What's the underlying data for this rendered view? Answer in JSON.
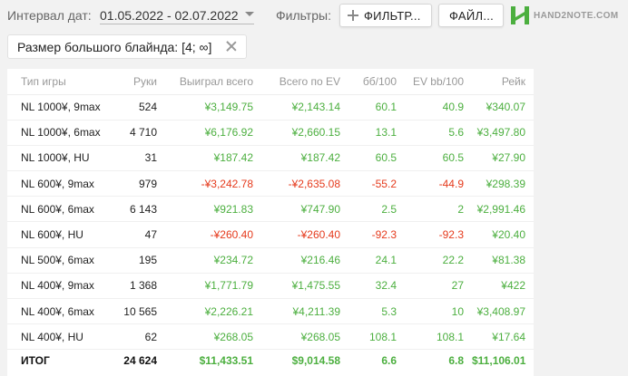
{
  "header": {
    "interval_label": "Интервал дат:",
    "interval_value": "01.05.2022 - 02.07.2022",
    "filters_label": "Фильтры:",
    "filter_button": "ФИЛЬТР...",
    "files_button": "ФАЙЛ...",
    "logo_text": "HAND2NOTE.COM",
    "brand_color": "#4caf3f"
  },
  "chip": {
    "label": "Размер большого блайнда: [4; ∞]"
  },
  "colors": {
    "positive": "#4caf3f",
    "negative": "#e53a1c"
  },
  "table": {
    "columns": [
      "Тип игры",
      "Руки",
      "Выиграл всего",
      "Всего по EV",
      "бб/100",
      "EV bb/100",
      "Рейк"
    ],
    "rows": [
      {
        "game": "NL 1000¥, 9max",
        "hands": "524",
        "won": "¥3,149.75",
        "ev": "¥2,143.14",
        "bb100": "60.1",
        "evbb100": "40.9",
        "rake": "¥340.07",
        "won_sign": "pos",
        "ev_sign": "pos",
        "bb_sign": "pos",
        "evbb_sign": "pos"
      },
      {
        "game": "NL 1000¥, 6max",
        "hands": "4 710",
        "won": "¥6,176.92",
        "ev": "¥2,660.15",
        "bb100": "13.1",
        "evbb100": "5.6",
        "rake": "¥3,497.80",
        "won_sign": "pos",
        "ev_sign": "pos",
        "bb_sign": "pos",
        "evbb_sign": "pos"
      },
      {
        "game": "NL 1000¥, HU",
        "hands": "31",
        "won": "¥187.42",
        "ev": "¥187.42",
        "bb100": "60.5",
        "evbb100": "60.5",
        "rake": "¥27.90",
        "won_sign": "pos",
        "ev_sign": "pos",
        "bb_sign": "pos",
        "evbb_sign": "pos"
      },
      {
        "game": "NL 600¥, 9max",
        "hands": "979",
        "won": "-¥3,242.78",
        "ev": "-¥2,635.08",
        "bb100": "-55.2",
        "evbb100": "-44.9",
        "rake": "¥298.39",
        "won_sign": "neg",
        "ev_sign": "neg",
        "bb_sign": "neg",
        "evbb_sign": "neg"
      },
      {
        "game": "NL 600¥, 6max",
        "hands": "6 143",
        "won": "¥921.83",
        "ev": "¥747.90",
        "bb100": "2.5",
        "evbb100": "2",
        "rake": "¥2,991.46",
        "won_sign": "pos",
        "ev_sign": "pos",
        "bb_sign": "pos",
        "evbb_sign": "pos"
      },
      {
        "game": "NL 600¥, HU",
        "hands": "47",
        "won": "-¥260.40",
        "ev": "-¥260.40",
        "bb100": "-92.3",
        "evbb100": "-92.3",
        "rake": "¥20.40",
        "won_sign": "neg",
        "ev_sign": "neg",
        "bb_sign": "neg",
        "evbb_sign": "neg"
      },
      {
        "game": "NL 500¥, 6max",
        "hands": "195",
        "won": "¥234.72",
        "ev": "¥216.46",
        "bb100": "24.1",
        "evbb100": "22.2",
        "rake": "¥81.38",
        "won_sign": "pos",
        "ev_sign": "pos",
        "bb_sign": "pos",
        "evbb_sign": "pos"
      },
      {
        "game": "NL 400¥, 9max",
        "hands": "1 368",
        "won": "¥1,771.79",
        "ev": "¥1,475.55",
        "bb100": "32.4",
        "evbb100": "27",
        "rake": "¥422",
        "won_sign": "pos",
        "ev_sign": "pos",
        "bb_sign": "pos",
        "evbb_sign": "pos"
      },
      {
        "game": "NL 400¥, 6max",
        "hands": "10 565",
        "won": "¥2,226.21",
        "ev": "¥4,211.39",
        "bb100": "5.3",
        "evbb100": "10",
        "rake": "¥3,408.97",
        "won_sign": "pos",
        "ev_sign": "pos",
        "bb_sign": "pos",
        "evbb_sign": "pos"
      },
      {
        "game": "NL 400¥, HU",
        "hands": "62",
        "won": "¥268.05",
        "ev": "¥268.05",
        "bb100": "108.1",
        "evbb100": "108.1",
        "rake": "¥17.64",
        "won_sign": "pos",
        "ev_sign": "pos",
        "bb_sign": "pos",
        "evbb_sign": "pos"
      }
    ],
    "total": {
      "game": "ИТОГ",
      "hands": "24 624",
      "won": "$11,433.51",
      "ev": "$9,014.58",
      "bb100": "6.6",
      "evbb100": "6.8",
      "rake": "$11,106.01"
    }
  }
}
